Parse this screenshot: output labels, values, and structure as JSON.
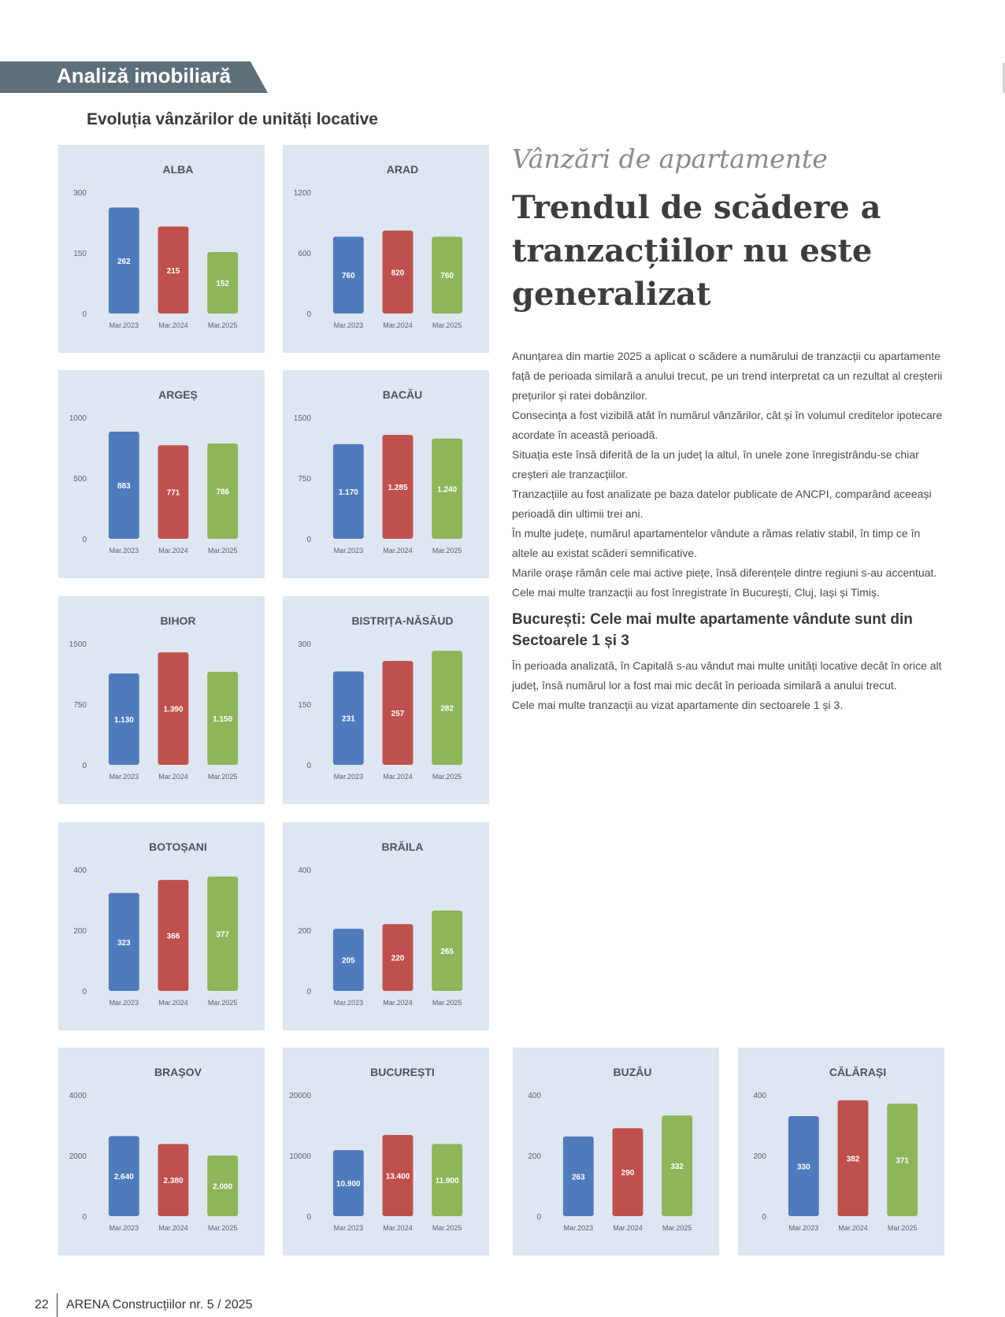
{
  "header": {
    "section_label": "Analiză imobiliară"
  },
  "charts_section": {
    "title": "Evoluția vânzărilor de unități locative"
  },
  "article": {
    "kicker": "Vânzări de apartamente",
    "title": "Trendul de scădere a tranzacțiilor nu este generalizat",
    "paragraphs": [
      "Anunțarea din martie 2025 a aplicat o scădere a numărului de tranzacții cu apartamente față de perioada similară a anului trecut, pe un trend interpretat ca un rezultat al creșterii prețurilor și ratei dobânzilor.",
      "Consecința a fost vizibilă atât în numărul vânzărilor, cât și în volumul creditelor ipotecare acordate în această perioadă.",
      "Situația este însă diferită de la un județ la altul, în unele zone înregistrându-se chiar creșteri ale tranzacțiilor.",
      "Tranzacțiile au fost analizate pe baza datelor publicate de ANCPI, comparând aceeași perioadă din ultimii trei ani.",
      "În multe județe, numărul apartamentelor vândute a rămas relativ stabil, în timp ce în altele au existat scăderi semnificative.",
      "Marile orașe rămân cele mai active piețe, însă diferențele dintre regiuni s-au accentuat.",
      "Cele mai multe tranzacții au fost înregistrate în București, Cluj, Iași și Timiș."
    ],
    "subheading": "București: Cele mai multe apartamente vândute sunt din Sectoarele 1 și 3",
    "paragraphs_after": [
      "În perioada analizată, în Capitală s-au vândut mai multe unități locative decât în orice alt județ, însă numărul lor a fost mai mic decât în perioada similară a anului trecut.",
      "Cele mai multe tranzacții au vizat apartamente din sectoarele 1 și 3."
    ]
  },
  "legend": {
    "categories": [
      "Mar.2023",
      "Mar.2024",
      "Mar.2025"
    ]
  },
  "colors": {
    "series1": "#4f7bbd",
    "series2": "#c0504d",
    "series3": "#8db55a",
    "panel_bg": "#dde6f1"
  },
  "chart_data": [
    {
      "type": "bar",
      "title": "ALBA",
      "ylim": [
        0,
        300
      ],
      "yticks": [
        0,
        150,
        300
      ],
      "categories": [
        "Mar.2023",
        "Mar.2024",
        "Mar.2025"
      ],
      "values": [
        262,
        215,
        152
      ],
      "data_labels": [
        "262",
        "215",
        "152"
      ]
    },
    {
      "type": "bar",
      "title": "ARAD",
      "ylim": [
        0,
        1200
      ],
      "yticks": [
        0,
        600,
        1200
      ],
      "categories": [
        "Mar.2023",
        "Mar.2024",
        "Mar.2025"
      ],
      "values": [
        760,
        820,
        760
      ],
      "data_labels": [
        "760",
        "820",
        "760"
      ]
    },
    {
      "type": "bar",
      "title": "ARGEȘ",
      "ylim": [
        0,
        1000
      ],
      "yticks": [
        0,
        500,
        1000
      ],
      "categories": [
        "Mar.2023",
        "Mar.2024",
        "Mar.2025"
      ],
      "values": [
        883,
        771,
        786
      ],
      "data_labels": [
        "883",
        "771",
        "786"
      ]
    },
    {
      "type": "bar",
      "title": "BACĂU",
      "ylim": [
        0,
        1500
      ],
      "yticks": [
        0,
        750,
        1500
      ],
      "categories": [
        "Mar.2023",
        "Mar.2024",
        "Mar.2025"
      ],
      "values": [
        1170,
        1285,
        1240
      ],
      "data_labels": [
        "1.170",
        "1.285",
        "1.240"
      ]
    },
    {
      "type": "bar",
      "title": "BIHOR",
      "ylim": [
        0,
        1500
      ],
      "yticks": [
        0,
        750,
        1500
      ],
      "categories": [
        "Mar.2023",
        "Mar.2024",
        "Mar.2025"
      ],
      "values": [
        1130,
        1390,
        1150
      ],
      "data_labels": [
        "1.130",
        "1.390",
        "1.150"
      ]
    },
    {
      "type": "bar",
      "title": "BISTRIȚA-NĂSĂUD",
      "ylim": [
        0,
        300
      ],
      "yticks": [
        0,
        150,
        300
      ],
      "categories": [
        "Mar.2023",
        "Mar.2024",
        "Mar.2025"
      ],
      "values": [
        231,
        257,
        282
      ],
      "data_labels": [
        "231",
        "257",
        "282"
      ]
    },
    {
      "type": "bar",
      "title": "BOTOȘANI",
      "ylim": [
        0,
        400
      ],
      "yticks": [
        0,
        200,
        400
      ],
      "categories": [
        "Mar.2023",
        "Mar.2024",
        "Mar.2025"
      ],
      "values": [
        323,
        366,
        377
      ],
      "data_labels": [
        "323",
        "366",
        "377"
      ]
    },
    {
      "type": "bar",
      "title": "BRĂILA",
      "ylim": [
        0,
        400
      ],
      "yticks": [
        0,
        200,
        400
      ],
      "categories": [
        "Mar.2023",
        "Mar.2024",
        "Mar.2025"
      ],
      "values": [
        205,
        220,
        265
      ],
      "data_labels": [
        "205",
        "220",
        "265"
      ]
    },
    {
      "type": "bar",
      "title": "BRAȘOV",
      "ylim": [
        0,
        4000
      ],
      "yticks": [
        0,
        2000,
        4000
      ],
      "categories": [
        "Mar.2023",
        "Mar.2024",
        "Mar.2025"
      ],
      "values": [
        2640,
        2380,
        2000
      ],
      "data_labels": [
        "2.640",
        "2.380",
        "2.000"
      ]
    },
    {
      "type": "bar",
      "title": "BUCUREȘTI",
      "ylim": [
        0,
        20000
      ],
      "yticks": [
        0,
        10000,
        20000
      ],
      "categories": [
        "Mar.2023",
        "Mar.2024",
        "Mar.2025"
      ],
      "values": [
        10900,
        13400,
        11900
      ],
      "data_labels": [
        "10.900",
        "13.400",
        "11.900"
      ]
    },
    {
      "type": "bar",
      "title": "BUZĂU",
      "ylim": [
        0,
        400
      ],
      "yticks": [
        0,
        200,
        400
      ],
      "categories": [
        "Mar.2023",
        "Mar.2024",
        "Mar.2025"
      ],
      "values": [
        263,
        290,
        332
      ],
      "data_labels": [
        "263",
        "290",
        "332"
      ]
    },
    {
      "type": "bar",
      "title": "CĂLĂRAȘI",
      "ylim": [
        0,
        400
      ],
      "yticks": [
        0,
        200,
        400
      ],
      "categories": [
        "Mar.2023",
        "Mar.2024",
        "Mar.2025"
      ],
      "values": [
        330,
        382,
        371
      ],
      "data_labels": [
        "330",
        "382",
        "371"
      ]
    }
  ],
  "footer": {
    "page_number": "22",
    "publication": "ARENA Construcțiilor nr. 5 / 2025"
  }
}
